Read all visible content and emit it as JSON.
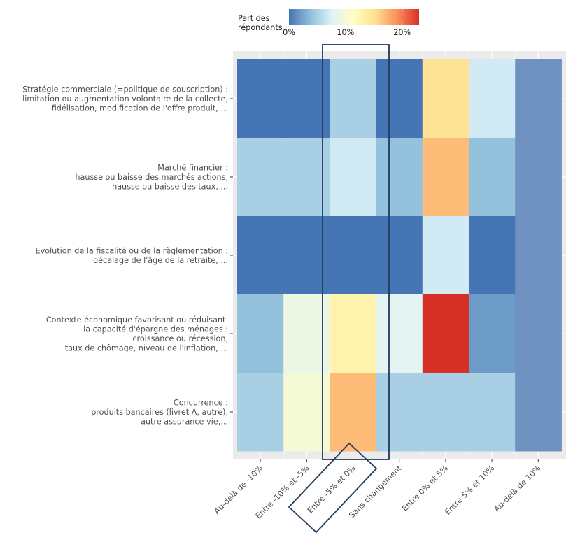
{
  "chart_data": {
    "type": "heatmap",
    "title": "",
    "xlabel": "",
    "ylabel": "",
    "x_categories": [
      "Au-delà de -10%",
      "Entre -10% et -5%",
      "Entre -5% et 0%",
      "Sans changement",
      "Entre 0% et 5%",
      "Entre 5% et 10%",
      "Au-delà de 10%"
    ],
    "y_categories": [
      [
        "Stratégie commerciale (=politique de souscription) :",
        "limitation ou augmentation volontaire de la collecte,",
        "fidélisation, modification de l'offre produit, ..."
      ],
      [
        "Marché financier :",
        "hausse ou baisse des marchés actions,",
        "hausse ou baisse des taux, ..."
      ],
      [
        "Evolution de la fiscalité ou de la règlementation :",
        "décalage de l'âge de la retraite, ..."
      ],
      [
        "Contexte économique favorisant ou réduisant ",
        "la capacité d'épargne des ménages :",
        "croissance ou récession,",
        "taux de chômage, niveau de l'inflation, ..."
      ],
      [
        "Concurrence :",
        "produits bancaires (livret A, autre),",
        "autre assurance-vie,..."
      ]
    ],
    "values_percent": [
      [
        0,
        0,
        5,
        0,
        15,
        7,
        2
      ],
      [
        5,
        5,
        7,
        4,
        17,
        4,
        2
      ],
      [
        0,
        0,
        0,
        0,
        7,
        0,
        2
      ],
      [
        4,
        9,
        13,
        8,
        23,
        2,
        2
      ],
      [
        5,
        10,
        17,
        5,
        5,
        5,
        2
      ]
    ],
    "colorbar": {
      "title": [
        "Part des",
        "répondants"
      ],
      "ticks": [
        "0%",
        "10%",
        "20%"
      ],
      "tick_values": [
        0,
        10,
        20
      ],
      "range": [
        0,
        23
      ],
      "palette": [
        "#4575b4",
        "#91bfdb",
        "#e0f3f8",
        "#ffffbf",
        "#fee090",
        "#fc8d59",
        "#d73027"
      ],
      "placement": "top"
    },
    "highlight": {
      "column": "Entre -5% et 0%",
      "outline_color": "#1f3a5a"
    },
    "grid": true,
    "panel_background": "#ebebeb"
  }
}
